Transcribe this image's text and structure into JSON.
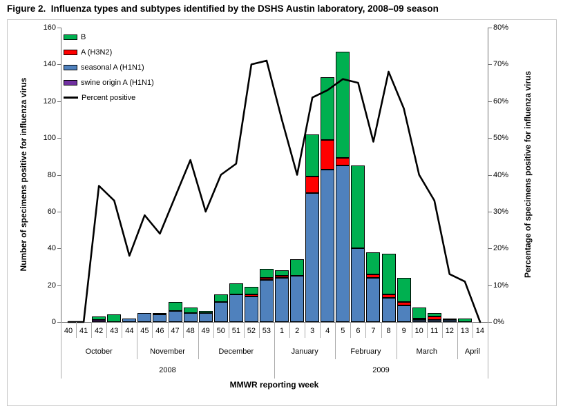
{
  "figure": {
    "title": "Figure 2.  Influenza types and subtypes identified by the DSHS Austin laboratory, 2008–09 season"
  },
  "chart_data": {
    "type": "bar",
    "subtype": "stacked_bars_with_line_overlay",
    "grid": false,
    "categories": [
      "40",
      "41",
      "42",
      "43",
      "44",
      "45",
      "46",
      "47",
      "48",
      "49",
      "50",
      "51",
      "52",
      "53",
      "1",
      "2",
      "3",
      "4",
      "5",
      "6",
      "7",
      "8",
      "9",
      "10",
      "11",
      "12",
      "13",
      "14"
    ],
    "series": [
      {
        "name": "swine origin A (H1N1)",
        "color": "#7030A0",
        "values": [
          0,
          0,
          1,
          0,
          0,
          0,
          0,
          0,
          0,
          0,
          0,
          0,
          0,
          0,
          0,
          0,
          0,
          0,
          0,
          0,
          0,
          0,
          0,
          0,
          0,
          0,
          0,
          0
        ]
      },
      {
        "name": "seasonal A (H1N1)",
        "color": "#4F81BD",
        "values": [
          0,
          0,
          0,
          0,
          2,
          5,
          4,
          6,
          5,
          5,
          11,
          15,
          14,
          23,
          24,
          25,
          70,
          83,
          85,
          40,
          24,
          13,
          9,
          1,
          1,
          1,
          0,
          0
        ]
      },
      {
        "name": "A (H3N2)",
        "color": "#FF0000",
        "values": [
          0,
          0,
          0,
          0,
          0,
          0,
          0,
          0,
          0,
          0,
          0,
          0,
          1,
          1,
          1,
          0,
          9,
          16,
          4,
          0,
          2,
          2,
          2,
          1,
          2,
          0,
          0,
          0
        ]
      },
      {
        "name": "B",
        "color": "#00B050",
        "values": [
          0,
          0,
          2,
          4,
          0,
          0,
          1,
          5,
          3,
          1,
          4,
          6,
          4,
          5,
          3,
          9,
          23,
          34,
          58,
          45,
          12,
          22,
          13,
          6,
          2,
          1,
          2,
          0
        ]
      }
    ],
    "line": {
      "name": "Percent positive",
      "color": "#000000",
      "values": [
        0,
        0,
        37,
        33,
        18,
        29,
        24,
        34,
        44,
        30,
        40,
        43,
        70,
        71,
        55,
        40,
        61,
        63,
        66,
        65,
        49,
        68,
        58,
        40,
        33,
        13,
        11,
        0
      ]
    },
    "left_axis": {
      "label": "Number of specimens positive for influenza virus",
      "min": 0,
      "max": 160,
      "step": 20
    },
    "right_axis": {
      "label": "Percentage of specimens positive for influenza virus",
      "min": 0,
      "max": 80,
      "step": 10,
      "suffix": "%"
    },
    "x_axis": {
      "label": "MMWR reporting week",
      "months": [
        {
          "label": "October",
          "weeks": 5
        },
        {
          "label": "November",
          "weeks": 4
        },
        {
          "label": "December",
          "weeks": 5
        },
        {
          "label": "January",
          "weeks": 4
        },
        {
          "label": "February",
          "weeks": 4
        },
        {
          "label": "March",
          "weeks": 4
        },
        {
          "label": "April",
          "weeks": 2
        }
      ],
      "years": [
        {
          "label": "2008",
          "weeks": 14
        },
        {
          "label": "2009",
          "weeks": 14
        }
      ]
    },
    "legend_position": "top-left-inside-plot"
  },
  "legend": {
    "items": [
      {
        "label": "B",
        "color": "#00B050",
        "type": "box"
      },
      {
        "label": "A (H3N2)",
        "color": "#FF0000",
        "type": "box"
      },
      {
        "label": "seasonal A (H1N1)",
        "color": "#4F81BD",
        "type": "box"
      },
      {
        "label": "swine origin A (H1N1)",
        "color": "#7030A0",
        "type": "box"
      },
      {
        "label": "Percent positive",
        "color": "#000000",
        "type": "line"
      }
    ]
  }
}
